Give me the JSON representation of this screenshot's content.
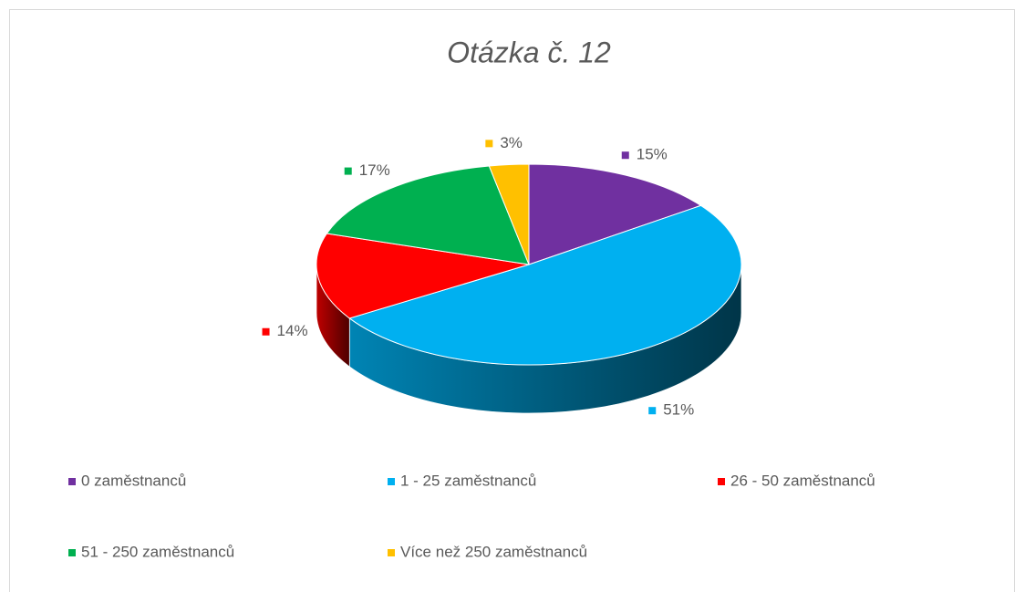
{
  "chart_data": {
    "type": "pie",
    "title": "Otázka č. 12",
    "categories": [
      "0 zaměstnanců",
      "1 - 25 zaměstnanců",
      "26 - 50 zaměstnanců",
      "51 - 250 zaměstnanců",
      "Více než 250 zaměstnanců"
    ],
    "values": [
      15,
      51,
      14,
      17,
      3
    ],
    "value_labels": [
      "15%",
      "51%",
      "14%",
      "17%",
      "3%"
    ],
    "colors": [
      "#7030a0",
      "#00b0f0",
      "#ff0000",
      "#00b050",
      "#ffc000"
    ],
    "legend": "bottom",
    "three_d": true
  }
}
